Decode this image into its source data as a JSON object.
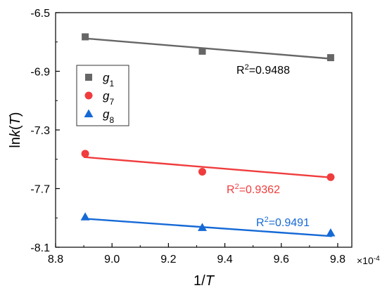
{
  "chart_data": {
    "type": "scatter",
    "xlabel_prefix": "1/",
    "xlabel_var": "T",
    "ylabel_prefix": "ln",
    "ylabel_var": "k",
    "ylabel_arg": "T",
    "x_multiplier_label": "×10",
    "x_multiplier_exp": "-4",
    "xlim": [
      8.8,
      9.85
    ],
    "ylim": [
      -8.1,
      -6.5
    ],
    "xticks": [
      8.8,
      9.0,
      9.2,
      9.4,
      9.6,
      9.8
    ],
    "yticks": [
      -6.5,
      -6.9,
      -7.3,
      -7.7,
      -8.1
    ],
    "legend_position": "upper-left",
    "series": [
      {
        "name": "g",
        "subscript": "1",
        "marker": "square",
        "color": "#666666",
        "x": [
          8.905,
          9.32,
          9.775
        ],
        "y": [
          -6.665,
          -6.763,
          -6.807
        ],
        "fit": {
          "x": [
            8.9,
            9.78
          ],
          "y": [
            -6.675,
            -6.815
          ]
        },
        "r2_prefix": "R",
        "r2_sup": "2",
        "r2_value": "=0.9488",
        "r2_color": "#000000"
      },
      {
        "name": "g",
        "subscript": "7",
        "marker": "circle",
        "color": "#f03c3c",
        "x": [
          8.905,
          9.32,
          9.775
        ],
        "y": [
          -7.462,
          -7.585,
          -7.622
        ],
        "fit": {
          "x": [
            8.9,
            9.78
          ],
          "y": [
            -7.485,
            -7.625
          ]
        },
        "r2_prefix": "R",
        "r2_sup": "2",
        "r2_value": "=0.9362",
        "r2_color": "#f03c3c"
      },
      {
        "name": "g",
        "subscript": "8",
        "marker": "triangle",
        "color": "#1569d6",
        "x": [
          8.905,
          9.32,
          9.775
        ],
        "y": [
          -7.893,
          -7.965,
          -8.002
        ],
        "fit": {
          "x": [
            8.9,
            9.78
          ],
          "y": [
            -7.905,
            -8.025
          ]
        },
        "r2_prefix": "R",
        "r2_sup": "2",
        "r2_value": "=0.9491",
        "r2_color": "#1569d6"
      }
    ]
  }
}
